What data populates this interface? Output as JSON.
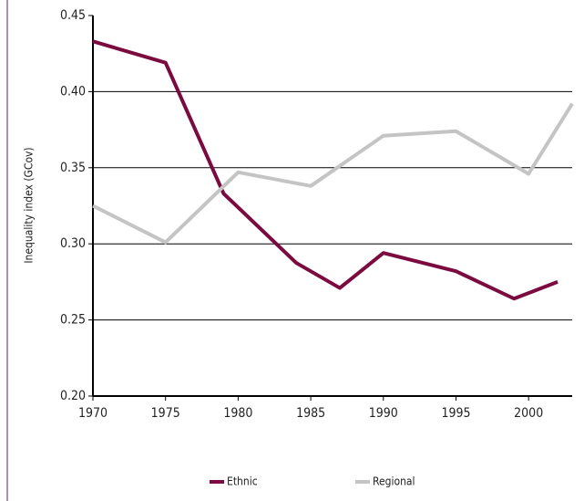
{
  "chart_data": {
    "type": "line",
    "y_label": "Inequality index (GCov)",
    "xlim": [
      1970,
      2003
    ],
    "xticks": [
      1970,
      1975,
      1980,
      1985,
      1990,
      1995,
      2000
    ],
    "ylim": [
      0.2,
      0.45
    ],
    "yticks": [
      {
        "value": 0.2,
        "label": "0.20"
      },
      0.25,
      {
        "value": 0.3,
        "label": "0.30"
      },
      0.35,
      {
        "value": 0.4,
        "label": "0.40"
      },
      0.45
    ],
    "grid": true,
    "series": [
      {
        "name": "Ethnic",
        "color": "#7b0a3e",
        "x": [
          1970,
          1975,
          1979,
          1984,
          1987,
          1990,
          1995,
          1999,
          2002
        ],
        "values": [
          0.433,
          0.419,
          0.333,
          0.2875,
          0.271,
          0.294,
          0.282,
          0.264,
          0.275
        ]
      },
      {
        "name": "Regional",
        "color": "#c4c4c4",
        "x": [
          1970,
          1975,
          1980,
          1985,
          1990,
          1995,
          2000,
          2003
        ],
        "values": [
          0.325,
          0.301,
          0.347,
          0.338,
          0.371,
          0.374,
          0.346,
          0.392
        ]
      }
    ]
  }
}
